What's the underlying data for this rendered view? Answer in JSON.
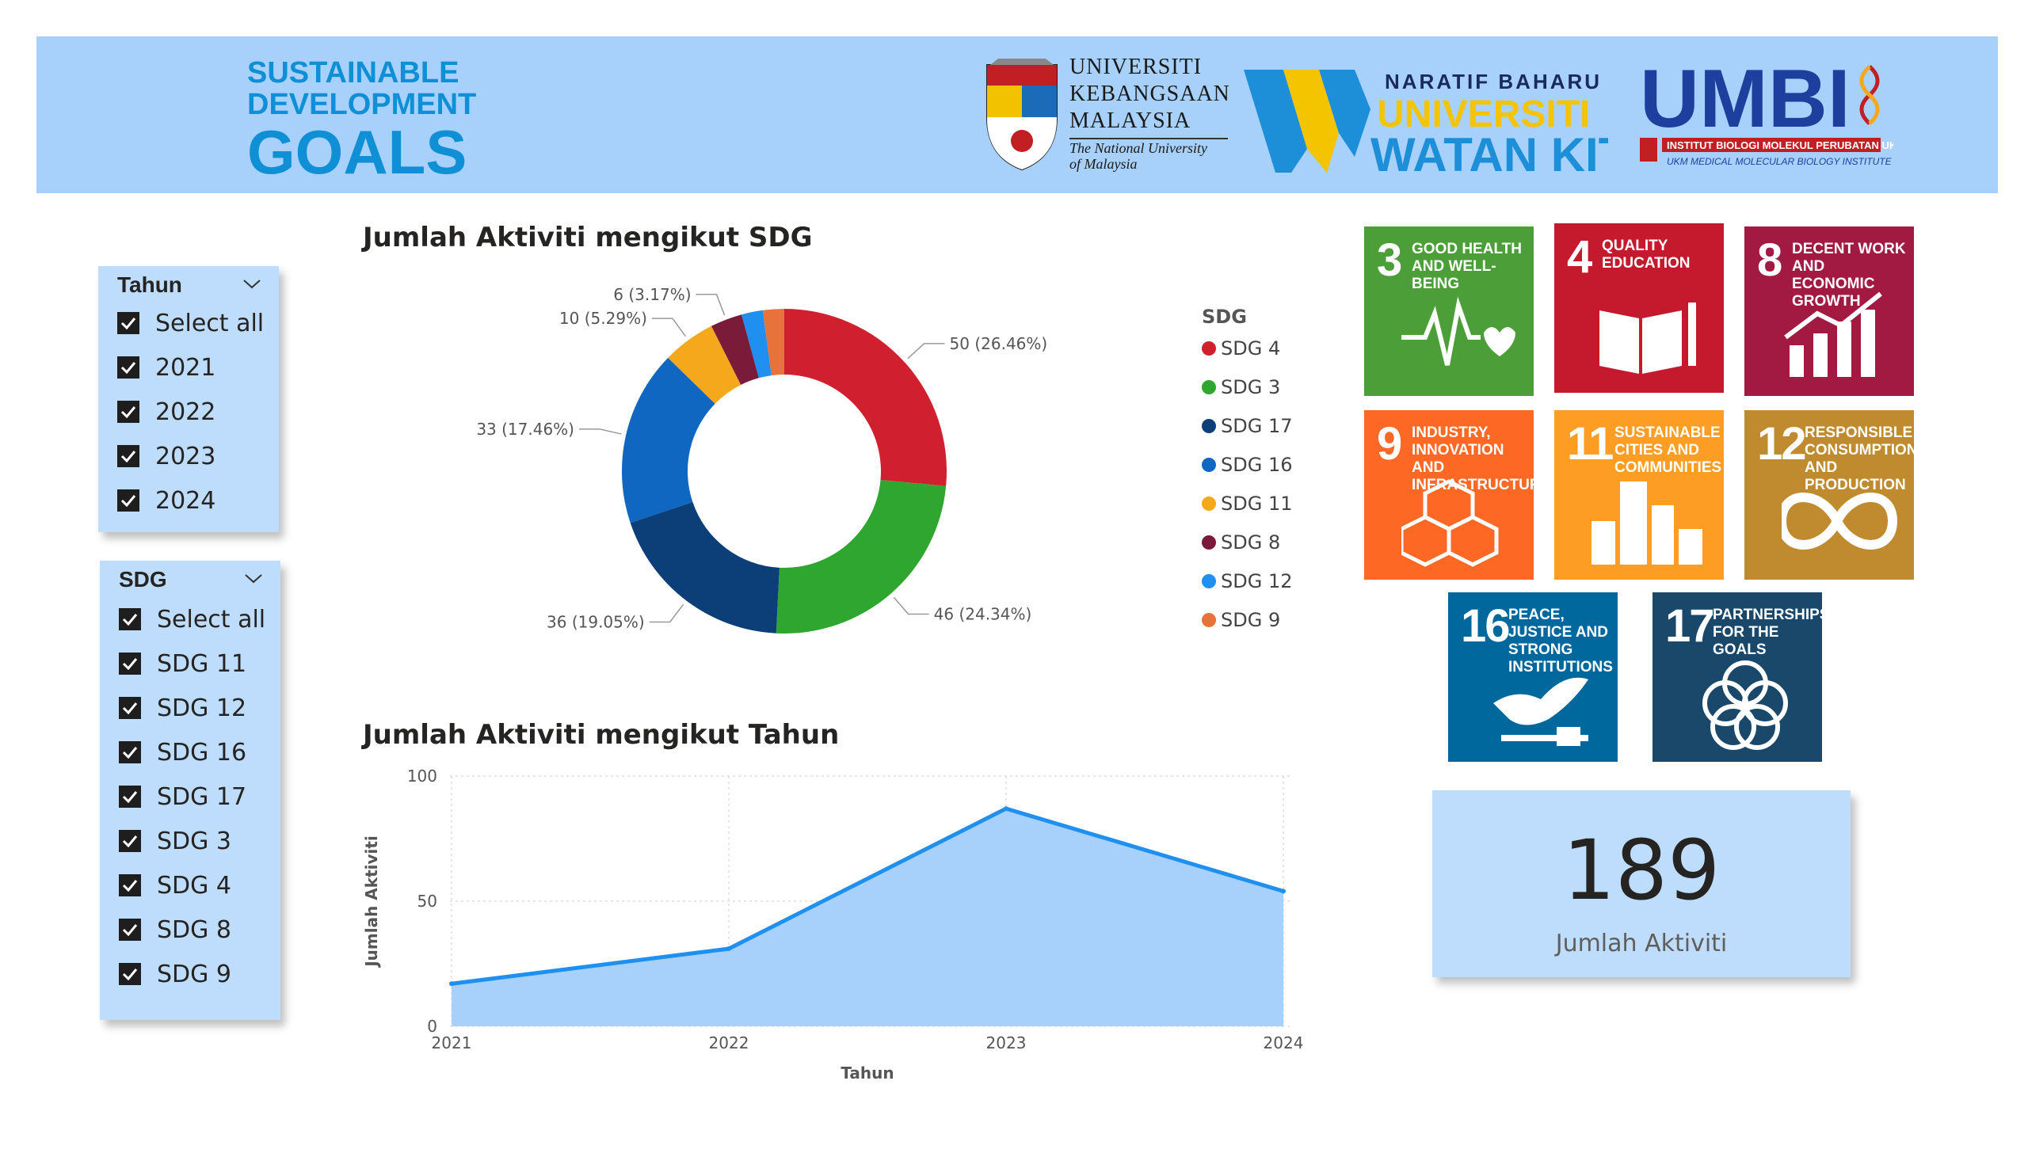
{
  "header": {
    "sdg_logo": {
      "line1": "SUSTAINABLE",
      "line2": "DEVELOPMENT",
      "line3": "GOALS"
    },
    "ukm_logo": {
      "name_line1": "UNIVERSITI",
      "name_line2": "KEBANGSAAN",
      "name_line3": "MALAYSIA",
      "subtitle_line1": "The National University",
      "subtitle_line2": "of Malaysia"
    },
    "watan_logo": {
      "top": "NARATIF BAHARU UKM",
      "middle": "UNIVERSITI",
      "bottom": "WATAN KITA"
    },
    "umbi_logo": {
      "title": "UMBI",
      "sub1": "INSTITUT BIOLOGI MOLEKUL PERUBATAN UKM",
      "sub2": "UKM MEDICAL MOLECULAR BIOLOGY INSTITUTE"
    }
  },
  "slicers": {
    "tahun": {
      "title": "Tahun",
      "items": [
        "Select all",
        "2021",
        "2022",
        "2023",
        "2024"
      ]
    },
    "sdg": {
      "title": "SDG",
      "items": [
        "Select all",
        "SDG 11",
        "SDG 12",
        "SDG 16",
        "SDG 17",
        "SDG 3",
        "SDG 4",
        "SDG 8",
        "SDG 9"
      ]
    }
  },
  "chart_data": [
    {
      "type": "pie",
      "title": "Jumlah Aktiviti mengikut SDG",
      "legend_title": "SDG",
      "legend_position": "right",
      "categories": [
        "SDG 4",
        "SDG 3",
        "SDG 17",
        "SDG 16",
        "SDG 11",
        "SDG 8",
        "SDG 12",
        "SDG 9"
      ],
      "values": [
        50,
        46,
        36,
        33,
        10,
        6,
        4,
        4
      ],
      "colors": [
        "#d0202f",
        "#2ea62f",
        "#0c3f78",
        "#1067c1",
        "#f5a81c",
        "#7a1b3a",
        "#1f8ff0",
        "#e8733a"
      ],
      "data_labels": [
        "50 (26.46%)",
        "46 (24.34%)",
        "36 (19.05%)",
        "33 (17.46%)",
        "10 (5.29%)",
        "6 (3.17%)",
        "",
        ""
      ]
    },
    {
      "type": "area",
      "title": "Jumlah Aktiviti mengikut Tahun",
      "xlabel": "Tahun",
      "ylabel": "Jumlah Aktiviti",
      "x": [
        "2021",
        "2022",
        "2023",
        "2024"
      ],
      "values": [
        17,
        31,
        87,
        54
      ],
      "ylim": [
        0,
        100
      ],
      "yticks": [
        "0",
        "50",
        "100"
      ],
      "grid": true,
      "line_color": "#1f8ff0",
      "fill_color": "#a7d1fb"
    }
  ],
  "sdg_tiles": [
    {
      "num": "3",
      "label": "Good health and well-being",
      "color": "#4c9f38",
      "icon": "heartbeat-icon"
    },
    {
      "num": "4",
      "label": "Quality education",
      "color": "#c5192d",
      "icon": "book-icon"
    },
    {
      "num": "8",
      "label": "Decent work and economic growth",
      "color": "#a21942",
      "icon": "growth-chart-icon"
    },
    {
      "num": "9",
      "label": "Industry, innovation and infrastructure",
      "color": "#fd6925",
      "icon": "cubes-icon"
    },
    {
      "num": "11",
      "label": "Sustainable cities and communities",
      "color": "#fd9d24",
      "icon": "city-icon"
    },
    {
      "num": "12",
      "label": "Responsible consumption and production",
      "color": "#bf8b2e",
      "icon": "infinity-icon"
    },
    {
      "num": "16",
      "label": "Peace, justice and strong institutions",
      "color": "#00689d",
      "icon": "dove-icon"
    },
    {
      "num": "17",
      "label": "Partnerships for the goals",
      "color": "#19486a",
      "icon": "rings-icon"
    }
  ],
  "kpi": {
    "value": "189",
    "caption": "Jumlah Aktiviti"
  }
}
